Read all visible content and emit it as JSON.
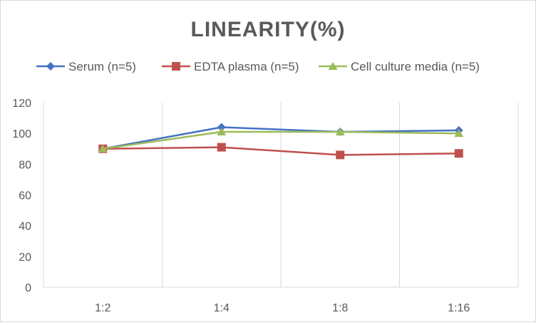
{
  "chart_data": {
    "type": "line",
    "title": "LINEARITY(%)",
    "categories": [
      "1:2",
      "1:4",
      "1:8",
      "1:16"
    ],
    "series": [
      {
        "name": "Serum (n=5)",
        "values": [
          90,
          104,
          101,
          102
        ],
        "color": "#4472c4",
        "marker": "diamond"
      },
      {
        "name": "EDTA plasma (n=5)",
        "values": [
          90,
          91,
          86,
          87
        ],
        "color": "#c0504d",
        "marker": "square"
      },
      {
        "name": "Cell culture media (n=5)",
        "values": [
          90,
          101,
          101,
          100
        ],
        "color": "#9bbb59",
        "marker": "triangle"
      }
    ],
    "ylim": [
      0,
      120
    ],
    "yticks": [
      0,
      20,
      40,
      60,
      80,
      100,
      120
    ],
    "xlabel": "",
    "ylabel": "",
    "legend": "top",
    "grid": "vertical"
  }
}
